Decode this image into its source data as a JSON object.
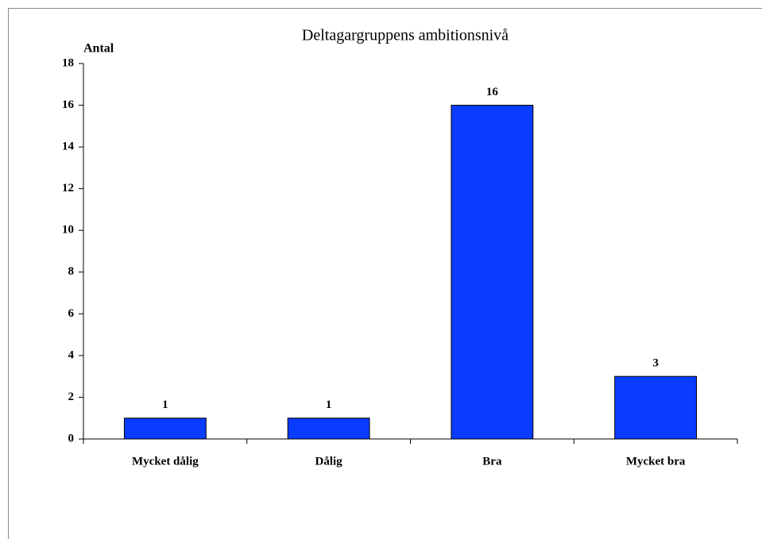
{
  "chart_data": {
    "type": "bar",
    "title": "Deltagargruppens ambitionsnivå",
    "y_label": "Antal",
    "categories": [
      "Mycket dålig",
      "Dålig",
      "Bra",
      "Mycket bra"
    ],
    "values": [
      1,
      1,
      16,
      3
    ],
    "color": "#0a3cff",
    "ylim": [
      0,
      18
    ],
    "yticks": [
      0,
      2,
      4,
      6,
      8,
      10,
      12,
      14,
      16,
      18
    ],
    "grid": false,
    "data_labels": true
  }
}
